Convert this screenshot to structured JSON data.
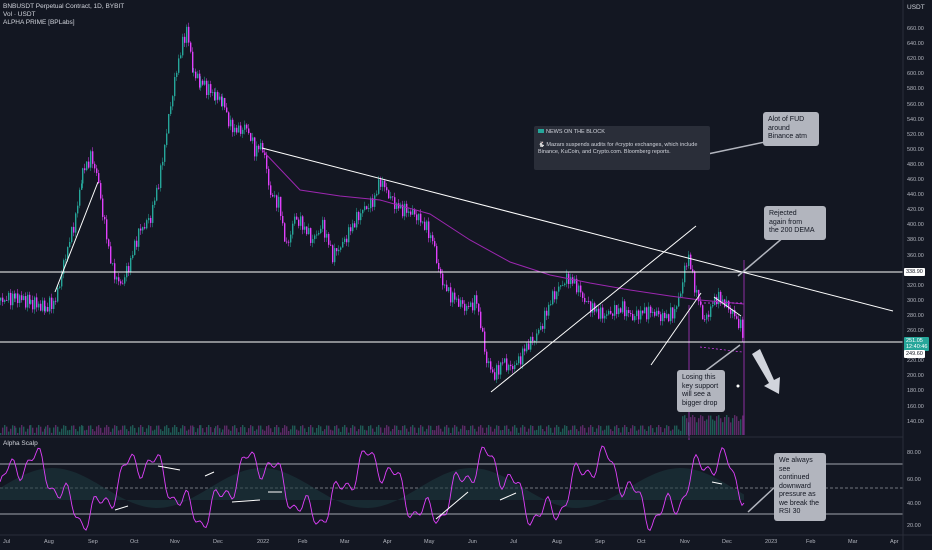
{
  "header": {
    "symbol_line": "BNBUSDT Perpetual Contract, 1D, BYBIT",
    "vol_line": "Vol · USDT",
    "indicator_line": "ALPHA PRIME [BPLabs]",
    "currency": "USDT"
  },
  "price_axis": {
    "ticks": [
      "660.00",
      "640.00",
      "620.00",
      "600.00",
      "580.00",
      "560.00",
      "540.00",
      "520.00",
      "500.00",
      "480.00",
      "460.00",
      "440.00",
      "420.00",
      "400.00",
      "380.00",
      "360.00",
      "340.00",
      "320.00",
      "300.00",
      "280.00",
      "260.00",
      "240.00",
      "220.00",
      "200.00",
      "180.00",
      "160.00",
      "140.00"
    ],
    "label_resistance": "338.90",
    "label_current": "251.05",
    "label_countdown": "12:40:46",
    "label_support": "249.60"
  },
  "oscillator": {
    "title": "Alpha Scalp",
    "ticks": [
      "80.00",
      "60.00",
      "40.00",
      "20.00"
    ]
  },
  "time_axis": {
    "labels": [
      "Jul",
      "Aug",
      "Sep",
      "Oct",
      "Nov",
      "Dec",
      "2022",
      "Feb",
      "Mar",
      "Apr",
      "May",
      "Jun",
      "Jul",
      "Aug",
      "Sep",
      "Oct",
      "Nov",
      "Dec",
      "2023",
      "Feb",
      "Mar",
      "Apr"
    ]
  },
  "news": {
    "heading": "NEWS ON THE BLOCK",
    "body_line1": "🐇 Mazars suspends audits for #crypto exchanges, which include",
    "body_line2": "Binance, KuCoin, and Crypto.com. Bloomberg reports."
  },
  "callouts": {
    "fud": [
      "Alot of FUD",
      "around",
      "Binance atm"
    ],
    "rejected": [
      "Rejected",
      "again from",
      "the 200 DEMA"
    ],
    "losing": [
      "Losing this",
      "key support",
      "will see a",
      "bigger drop"
    ],
    "rsi": [
      "We always",
      "see",
      "continued",
      "downward",
      "pressure as",
      "we break the",
      "RSI 30"
    ]
  },
  "colors": {
    "background": "#131722",
    "up_candle": "#26a69a",
    "down_candle": "#e040fb",
    "ema_line": "#9c27b0",
    "trendline": "#ffffff",
    "callout_bg": "#b2b5be",
    "current_price_bg": "#26a69a"
  }
}
